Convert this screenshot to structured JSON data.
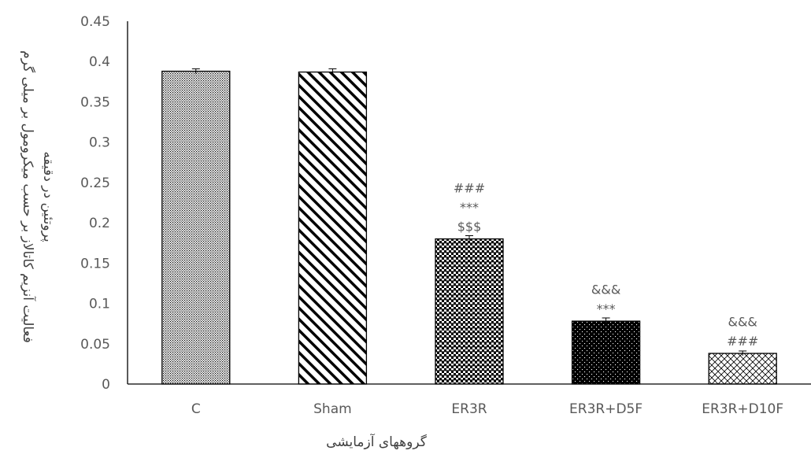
{
  "chart_data": {
    "type": "bar",
    "title": "",
    "xlabel": "گروههای آزمایشی",
    "ylabel_line1": "فعالیت آنزیم کاتالاز بر حسب میکرومول بر میلی گرم",
    "ylabel_line2": "پروتئین در دقیقه",
    "ylim": [
      0,
      0.45
    ],
    "yticks": [
      "0",
      "0.05",
      "0.1",
      "0.15",
      "0.2",
      "0.25",
      "0.3",
      "0.35",
      "0.4",
      "0.45"
    ],
    "grid": false,
    "categories": [
      "C",
      "Sham",
      "ER3R",
      "ER3R+D5F",
      "ER3R+D10F"
    ],
    "values": [
      0.388,
      0.387,
      0.18,
      0.078,
      0.038
    ],
    "errors": [
      0.003,
      0.004,
      0.004,
      0.004,
      0.003
    ],
    "patterns": [
      "fine-dots",
      "diagonal-hatch",
      "checker",
      "dots-on-black",
      "diamond-hatch"
    ],
    "significance": [
      [],
      [],
      [
        "###",
        "***",
        "$$$"
      ],
      [
        "&&&",
        "***"
      ],
      [
        "&&&",
        "###"
      ]
    ],
    "colors": {
      "axis": "#000000",
      "label": "#595959",
      "bar_fill": "#000000",
      "background": "#ffffff"
    }
  }
}
